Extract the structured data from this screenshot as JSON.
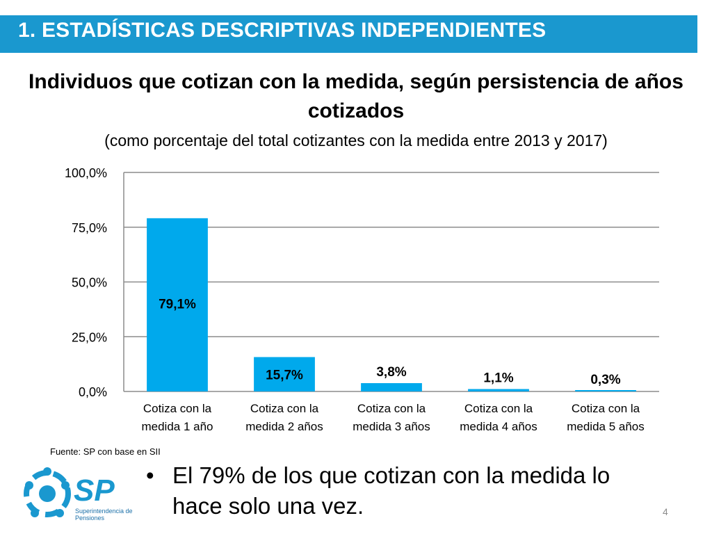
{
  "header": {
    "title": "1. ESTADÍSTICAS DESCRIPTIVAS INDEPENDIENTES",
    "bar_color": "#1a98cf"
  },
  "chart_data": {
    "type": "bar",
    "title": "Individuos que cotizan con la medida, según persistencia de años cotizados",
    "subtitle": "(como porcentaje del total cotizantes con la medida entre 2013 y 2017)",
    "categories": [
      [
        "Cotiza con la",
        "medida 1 año"
      ],
      [
        "Cotiza con la",
        "medida 2 años"
      ],
      [
        "Cotiza con la",
        "medida 3 años"
      ],
      [
        "Cotiza con la",
        "medida 4 años"
      ],
      [
        "Cotiza con la",
        "medida 5 años"
      ]
    ],
    "values": [
      79.1,
      15.7,
      3.8,
      1.1,
      0.3
    ],
    "data_labels": [
      "79,1%",
      "15,7%",
      "3,8%",
      "1,1%",
      "0,3%"
    ],
    "ylim": [
      0,
      100
    ],
    "yticks": [
      0,
      25,
      50,
      75,
      100
    ],
    "ytick_labels": [
      "0,0%",
      "25,0%",
      "50,0%",
      "75,0%",
      "100,0%"
    ],
    "grid": true,
    "bar_color": "#00a9ec"
  },
  "source": "Fuente: SP con base en SII",
  "bullet": {
    "symbol": "•",
    "text": "El 79% de los que cotizan con la medida lo hace solo una vez."
  },
  "logo": {
    "name": "SP",
    "subtitle_lines": [
      "Superintendencia de",
      "Pensiones"
    ]
  },
  "page_number": "4"
}
